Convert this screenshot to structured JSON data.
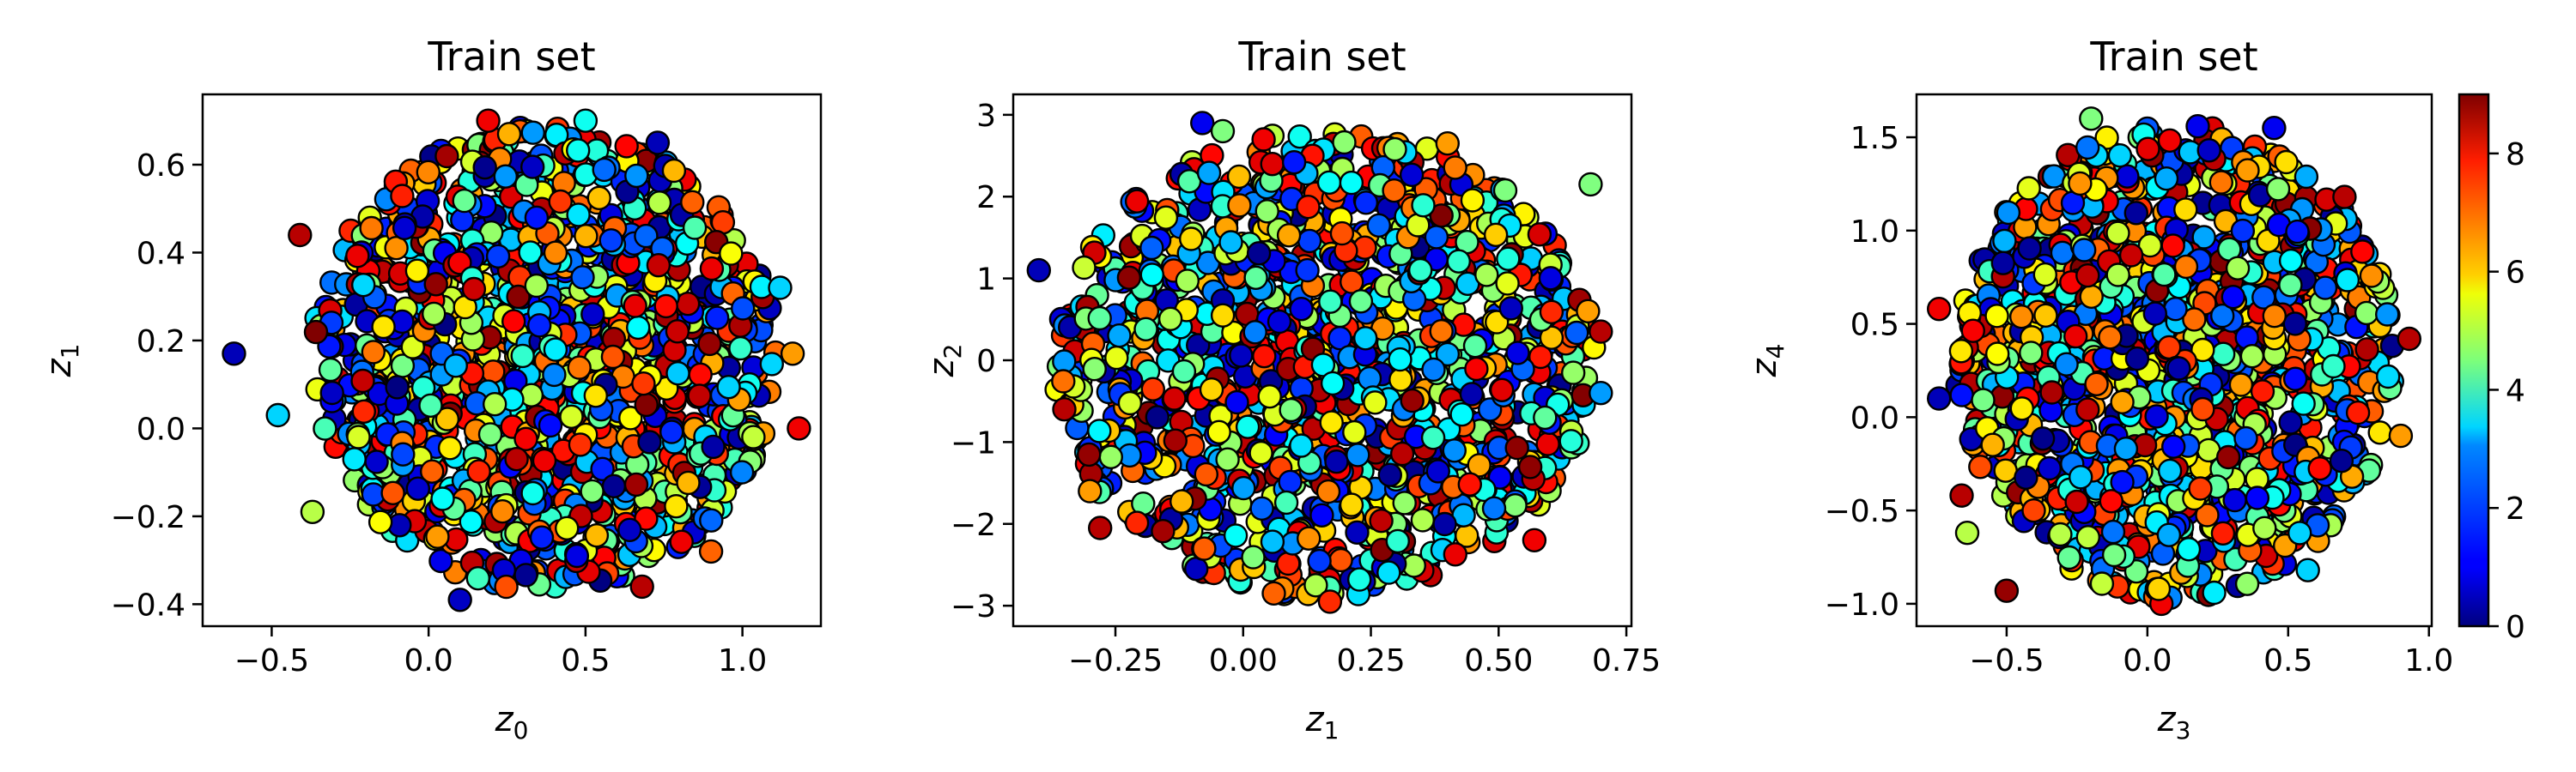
{
  "chart_data": [
    {
      "type": "scatter",
      "title": "Train set",
      "xlabel": {
        "base": "z",
        "sub": "0"
      },
      "ylabel": {
        "base": "z",
        "sub": "1"
      },
      "xlim": [
        -0.72,
        1.25
      ],
      "ylim": [
        -0.45,
        0.76
      ],
      "xticks": [
        -0.5,
        0.0,
        0.5,
        1.0
      ],
      "xtick_labels": [
        "−0.5",
        "0.0",
        "0.5",
        "1.0"
      ],
      "yticks": [
        -0.4,
        -0.2,
        0.0,
        0.2,
        0.4,
        0.6
      ],
      "ytick_labels": [
        "−0.4",
        "−0.2",
        "0.0",
        "0.2",
        "0.4",
        "0.6"
      ],
      "cloud": {
        "center": [
          0.37,
          0.16
        ],
        "radius": [
          0.74,
          0.53
        ],
        "count": 1400,
        "seed": 11
      },
      "points": [
        {
          "x": -0.62,
          "y": 0.17,
          "c": 0.5
        },
        {
          "x": -0.48,
          "y": 0.03,
          "c": 3.0
        },
        {
          "x": -0.37,
          "y": -0.19,
          "c": 5.0
        },
        {
          "x": 0.1,
          "y": -0.39,
          "c": 0.6
        },
        {
          "x": 0.68,
          "y": -0.36,
          "c": 8.5
        },
        {
          "x": 1.18,
          "y": 0.0,
          "c": 8.0
        },
        {
          "x": 1.16,
          "y": 0.17,
          "c": 6.5
        },
        {
          "x": 0.19,
          "y": 0.7,
          "c": 8.0
        },
        {
          "x": 0.5,
          "y": 0.7,
          "c": 3.5
        },
        {
          "x": 0.73,
          "y": 0.65,
          "c": 0.5
        },
        {
          "x": 1.12,
          "y": 0.32,
          "c": 3.0
        },
        {
          "x": -0.41,
          "y": 0.44,
          "c": 8.5
        },
        {
          "x": 0.9,
          "y": -0.28,
          "c": 7.0
        }
      ]
    },
    {
      "type": "scatter",
      "title": "Train set",
      "xlabel": {
        "base": "z",
        "sub": "1"
      },
      "ylabel": {
        "base": "z",
        "sub": "2"
      },
      "xlim": [
        -0.45,
        0.76
      ],
      "ylim": [
        -3.25,
        3.25
      ],
      "xticks": [
        -0.25,
        0.0,
        0.25,
        0.5,
        0.75
      ],
      "xtick_labels": [
        "−0.25",
        "0.00",
        "0.25",
        "0.50",
        "0.75"
      ],
      "yticks": [
        -3,
        -2,
        -1,
        0,
        1,
        2,
        3
      ],
      "ytick_labels": [
        "−3",
        "−2",
        "−1",
        "0",
        "1",
        "2",
        "3"
      ],
      "cloud": {
        "center": [
          0.16,
          -0.05
        ],
        "radius": [
          0.53,
          2.85
        ],
        "count": 1400,
        "seed": 23
      },
      "points": [
        {
          "x": -0.4,
          "y": 1.1,
          "c": 0.5
        },
        {
          "x": -0.08,
          "y": 2.9,
          "c": 1.0
        },
        {
          "x": -0.04,
          "y": 2.8,
          "c": 4.5
        },
        {
          "x": 0.04,
          "y": 2.7,
          "c": 8.0
        },
        {
          "x": 0.4,
          "y": 2.65,
          "c": 6.5
        },
        {
          "x": 0.68,
          "y": 2.15,
          "c": 4.5
        },
        {
          "x": 0.7,
          "y": 0.35,
          "c": 8.5
        },
        {
          "x": 0.7,
          "y": -0.4,
          "c": 2.5
        },
        {
          "x": 0.57,
          "y": -2.2,
          "c": 8.0
        },
        {
          "x": 0.17,
          "y": -2.95,
          "c": 7.5
        },
        {
          "x": 0.06,
          "y": -2.85,
          "c": 7.0
        },
        {
          "x": -0.28,
          "y": -2.05,
          "c": 8.5
        },
        {
          "x": -0.35,
          "y": -0.6,
          "c": 8.5
        },
        {
          "x": -0.3,
          "y": -1.6,
          "c": 6.5
        }
      ]
    },
    {
      "type": "scatter",
      "title": "Train set",
      "xlabel": {
        "base": "z",
        "sub": "3"
      },
      "ylabel": {
        "base": "z",
        "sub": "4"
      },
      "xlim": [
        -0.82,
        1.01
      ],
      "ylim": [
        -1.12,
        1.73
      ],
      "xticks": [
        -0.5,
        0.0,
        0.5,
        1.0
      ],
      "xtick_labels": [
        "−0.5",
        "0.0",
        "0.5",
        "1.0"
      ],
      "yticks": [
        -1.0,
        -0.5,
        0.0,
        0.5,
        1.0,
        1.5
      ],
      "ytick_labels": [
        "−1.0",
        "−0.5",
        "0.0",
        "0.5",
        "1.0",
        "1.5"
      ],
      "cloud": {
        "center": [
          0.1,
          0.3
        ],
        "radius": [
          0.78,
          1.27
        ],
        "count": 1400,
        "seed": 37
      },
      "points": [
        {
          "x": -0.74,
          "y": 0.1,
          "c": 0.5
        },
        {
          "x": -0.74,
          "y": 0.58,
          "c": 8.0
        },
        {
          "x": -0.66,
          "y": -0.42,
          "c": 8.5
        },
        {
          "x": -0.64,
          "y": -0.62,
          "c": 5.0
        },
        {
          "x": -0.5,
          "y": -0.93,
          "c": 8.8
        },
        {
          "x": -0.2,
          "y": 1.6,
          "c": 4.5
        },
        {
          "x": 0.45,
          "y": 1.55,
          "c": 1.0
        },
        {
          "x": 0.93,
          "y": 0.42,
          "c": 8.5
        },
        {
          "x": 0.9,
          "y": -0.1,
          "c": 6.5
        },
        {
          "x": 0.57,
          "y": -0.82,
          "c": 3.0
        },
        {
          "x": 0.05,
          "y": -1.0,
          "c": 8.0
        },
        {
          "x": 0.04,
          "y": -0.92,
          "c": 6.0
        },
        {
          "x": 0.7,
          "y": 1.18,
          "c": 8.5
        }
      ]
    }
  ],
  "colorbar": {
    "colormap": "jet",
    "vmin": 0,
    "vmax": 9,
    "ticks": [
      0,
      2,
      4,
      6,
      8
    ],
    "tick_labels": [
      "0",
      "2",
      "4",
      "6",
      "8"
    ]
  },
  "marker": {
    "edge_color": "#000000"
  }
}
